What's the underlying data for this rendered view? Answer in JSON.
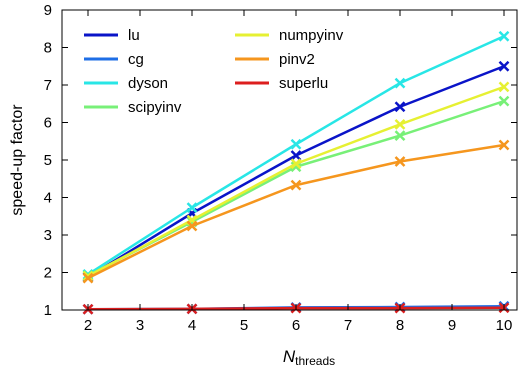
{
  "chart_data": {
    "type": "line",
    "title": "",
    "xlabel": "N",
    "xlabel_subscript": "threads",
    "ylabel": "speed-up factor",
    "xlim": [
      1.5,
      10.25
    ],
    "ylim": [
      1,
      9
    ],
    "xticks": [
      "2",
      "3",
      "4",
      "5",
      "6",
      "7",
      "8",
      "9",
      "10"
    ],
    "yticks": [
      "1",
      "2",
      "3",
      "4",
      "5",
      "6",
      "7",
      "8",
      "9"
    ],
    "grid": false,
    "legend_position": "top-left",
    "marker": "x",
    "x": [
      2,
      4,
      6,
      8,
      10
    ],
    "series": [
      {
        "name": "lu",
        "color": "#0a14c8",
        "values": [
          1.88,
          3.58,
          5.12,
          6.42,
          7.5
        ]
      },
      {
        "name": "cg",
        "color": "#1e6ee6",
        "values": [
          1.02,
          1.03,
          1.07,
          1.08,
          1.1
        ]
      },
      {
        "name": "dyson",
        "color": "#28e6e6",
        "values": [
          1.95,
          3.73,
          5.42,
          7.05,
          8.3
        ]
      },
      {
        "name": "scipyinv",
        "color": "#78f078",
        "values": [
          1.92,
          3.35,
          4.82,
          5.65,
          6.57
        ]
      },
      {
        "name": "numpyinv",
        "color": "#e6f032",
        "values": [
          1.9,
          3.4,
          4.9,
          5.95,
          6.95
        ]
      },
      {
        "name": "pinv2",
        "color": "#f5961e",
        "values": [
          1.85,
          3.24,
          4.33,
          4.96,
          5.4
        ]
      },
      {
        "name": "superlu",
        "color": "#dc1e1e",
        "values": [
          1.02,
          1.03,
          1.05,
          1.05,
          1.06
        ]
      }
    ]
  }
}
